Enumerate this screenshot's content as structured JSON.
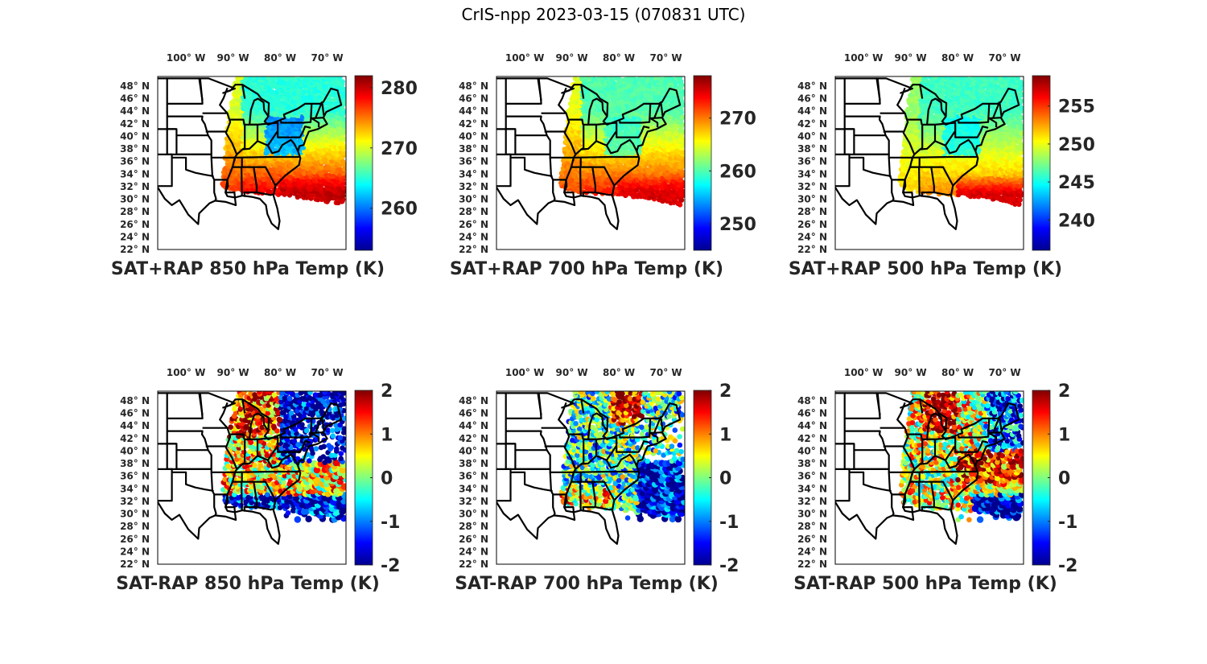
{
  "figure_title": "CrIS-npp 2023-03-15 (070831 UTC)",
  "colors": {
    "axis": "#262626",
    "border": "#000000",
    "background": "#ffffff",
    "colormap": [
      "#00008f",
      "#0000ff",
      "#0080ff",
      "#00ffff",
      "#80ff80",
      "#ffff00",
      "#ff8000",
      "#ff0000",
      "#800000"
    ]
  },
  "chart_data": [
    {
      "type": "heatmap",
      "title": "SAT+RAP 850 hPa Temp (K)",
      "colorbar": {
        "range": [
          253,
          282
        ],
        "ticks": [
          260,
          270,
          280
        ],
        "tick_labels": [
          "260",
          "270",
          "280"
        ],
        "colormap": "jet"
      },
      "x_ticks": [
        "100° W",
        "90° W",
        "80° W",
        "70° W"
      ],
      "y_ticks": [
        "48° N",
        "46° N",
        "44° N",
        "42° N",
        "40° N",
        "38° N",
        "36° N",
        "34° N",
        "32° N",
        "30° N",
        "28° N",
        "26° N",
        "24° N",
        "22° N"
      ],
      "field": "absolute",
      "field_summary": {
        "north": 265,
        "northeast_low": 258,
        "west_edge": 275,
        "south": 279,
        "southeast_ocean": 280
      }
    },
    {
      "type": "heatmap",
      "title": "SAT+RAP 700 hPa Temp (K)",
      "colorbar": {
        "range": [
          245,
          278
        ],
        "ticks": [
          250,
          260,
          270
        ],
        "tick_labels": [
          "250",
          "260",
          "270"
        ],
        "colormap": "jet"
      },
      "x_ticks": [
        "100° W",
        "90° W",
        "80° W",
        "70° W"
      ],
      "y_ticks": [
        "48° N",
        "46° N",
        "44° N",
        "42° N",
        "40° N",
        "38° N",
        "36° N",
        "34° N",
        "32° N",
        "30° N",
        "28° N",
        "26° N",
        "24° N",
        "22° N"
      ],
      "field": "absolute",
      "field_summary": {
        "north": 260,
        "northeast_low": 258,
        "west_edge": 270,
        "south": 273,
        "southeast_ocean": 275
      }
    },
    {
      "type": "heatmap",
      "title": "SAT+RAP 500 hPa Temp (K)",
      "colorbar": {
        "range": [
          236,
          259
        ],
        "ticks": [
          240,
          245,
          250,
          255
        ],
        "tick_labels": [
          "240",
          "245",
          "250",
          "255"
        ],
        "colormap": "jet"
      },
      "x_ticks": [
        "100° W",
        "90° W",
        "80° W",
        "70° W"
      ],
      "y_ticks": [
        "48° N",
        "46° N",
        "44° N",
        "42° N",
        "40° N",
        "38° N",
        "36° N",
        "34° N",
        "32° N",
        "30° N",
        "28° N",
        "26° N",
        "24° N",
        "22° N"
      ],
      "field": "absolute",
      "field_summary": {
        "north": 246,
        "northeast_low": 244,
        "west_edge": 250,
        "south": 253,
        "southeast_ocean": 257
      }
    },
    {
      "type": "heatmap",
      "title": "SAT-RAP 850 hPa Temp (K)",
      "colorbar": {
        "range": [
          -2,
          2
        ],
        "ticks": [
          -2,
          -1,
          0,
          1,
          2
        ],
        "tick_labels": [
          "-2",
          "-1",
          "0",
          "1",
          "2"
        ],
        "colormap": "jet"
      },
      "x_ticks": [
        "100° W",
        "90° W",
        "80° W",
        "70° W"
      ],
      "y_ticks": [
        "48° N",
        "46° N",
        "44° N",
        "42° N",
        "40° N",
        "38° N",
        "36° N",
        "34° N",
        "32° N",
        "30° N",
        "28° N",
        "26° N",
        "24° N",
        "22° N"
      ],
      "field": "difference",
      "field_summary": {
        "great_lakes": 1.2,
        "northeast": -1.8,
        "south": -1.5,
        "midwest": 0.5
      }
    },
    {
      "type": "heatmap",
      "title": "SAT-RAP 700 hPa Temp (K)",
      "colorbar": {
        "range": [
          -2,
          2
        ],
        "ticks": [
          -2,
          -1,
          0,
          1,
          2
        ],
        "tick_labels": [
          "-2",
          "-1",
          "0",
          "1",
          "2"
        ],
        "colormap": "jet"
      },
      "x_ticks": [
        "100° W",
        "90° W",
        "80° W",
        "70° W"
      ],
      "y_ticks": [
        "48° N",
        "46° N",
        "44° N",
        "42° N",
        "40° N",
        "38° N",
        "36° N",
        "34° N",
        "32° N",
        "30° N",
        "28° N",
        "26° N",
        "24° N",
        "22° N"
      ],
      "field": "difference",
      "field_summary": {
        "great_lakes": 1.5,
        "northeast": -1.5,
        "south": 0.5,
        "midwest": -0.2
      }
    },
    {
      "type": "heatmap",
      "title": "SAT-RAP 500 hPa Temp (K)",
      "colorbar": {
        "range": [
          -2,
          2
        ],
        "ticks": [
          -2,
          -1,
          0,
          1,
          2
        ],
        "tick_labels": [
          "-2",
          "-1",
          "0",
          "1",
          "2"
        ],
        "colormap": "jet"
      },
      "x_ticks": [
        "100° W",
        "90° W",
        "80° W",
        "70° W"
      ],
      "y_ticks": [
        "48° N",
        "46° N",
        "44° N",
        "42° N",
        "40° N",
        "38° N",
        "36° N",
        "34° N",
        "32° N",
        "30° N",
        "28° N",
        "26° N",
        "24° N",
        "22° N"
      ],
      "field": "difference",
      "field_summary": {
        "great_lakes": 1.8,
        "northeast": 0.8,
        "south": -0.2,
        "southeast_ocean": -1.8
      }
    }
  ]
}
